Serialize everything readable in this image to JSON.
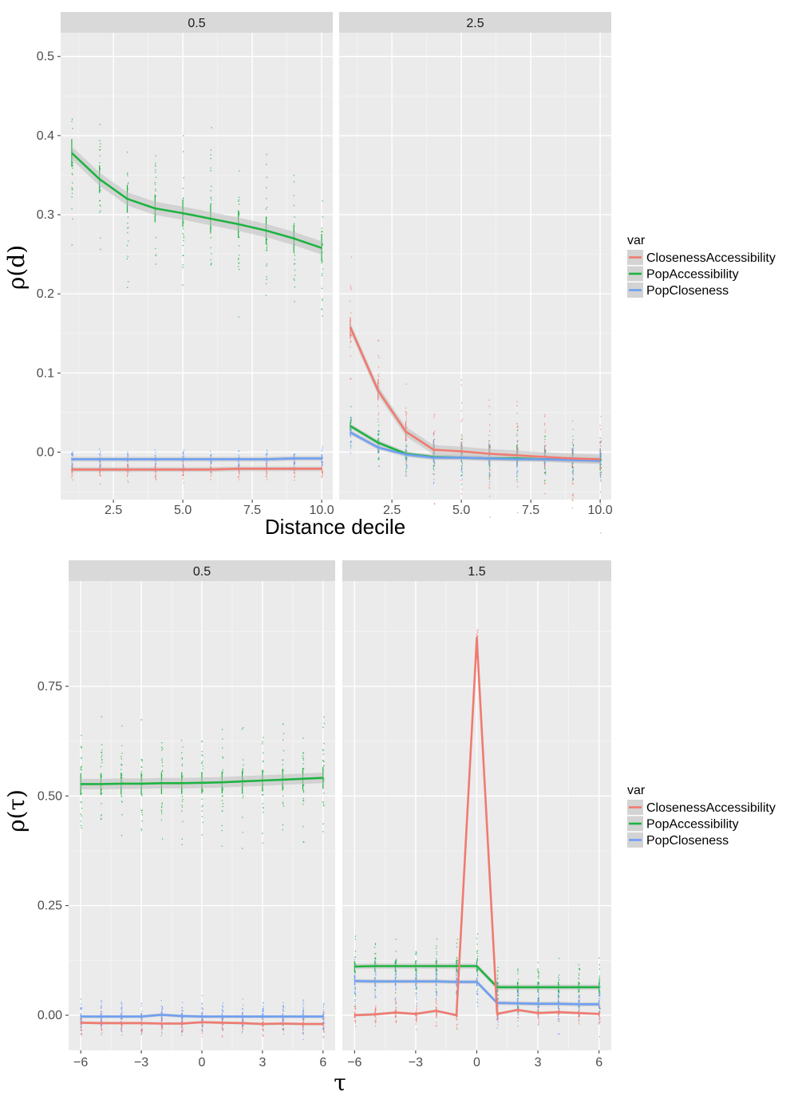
{
  "colors": {
    "ClosenessAccessibility": "#f07a70",
    "PopAccessibility": "#1eb341",
    "PopCloseness": "#6e9ff2",
    "panel_bg": "#ebebeb",
    "strip_bg": "#d9d9d9",
    "ribbon": "#bdbdbd"
  },
  "chart_data": [
    {
      "type": "line",
      "title": "",
      "xlabel": "Distance decile",
      "ylabel": "ρ(d)",
      "xlim": [
        0.6,
        10.4
      ],
      "ylim": [
        -0.06,
        0.53
      ],
      "x_ticks": [
        2.5,
        5.0,
        7.5,
        10.0
      ],
      "x_tick_labels": [
        "2.5",
        "5.0",
        "7.5",
        "10.0"
      ],
      "y_ticks": [
        0.0,
        0.1,
        0.2,
        0.3,
        0.4,
        0.5
      ],
      "y_tick_labels": [
        "0.0",
        "0.1",
        "0.2",
        "0.3",
        "0.4",
        "0.5"
      ],
      "legend_title": "var",
      "legend_items": [
        "ClosenessAccessibility",
        "PopAccessibility",
        "PopCloseness"
      ],
      "panels": [
        {
          "label": "0.5",
          "x": [
            1,
            2,
            3,
            4,
            5,
            6,
            7,
            8,
            9,
            10
          ],
          "series": [
            {
              "name": "ClosenessAccessibility",
              "values": [
                -0.022,
                -0.022,
                -0.022,
                -0.022,
                -0.022,
                -0.022,
                -0.021,
                -0.021,
                -0.021,
                -0.021
              ],
              "spread": 0.01
            },
            {
              "name": "PopAccessibility",
              "values": [
                0.378,
                0.345,
                0.32,
                0.308,
                0.302,
                0.295,
                0.288,
                0.28,
                0.27,
                0.258
              ],
              "spread": 0.07
            },
            {
              "name": "PopCloseness",
              "values": [
                -0.009,
                -0.009,
                -0.009,
                -0.009,
                -0.009,
                -0.009,
                -0.009,
                -0.009,
                -0.008,
                -0.008
              ],
              "spread": 0.01
            }
          ]
        },
        {
          "label": "2.5",
          "x": [
            1,
            2,
            3,
            4,
            5,
            6,
            7,
            8,
            9,
            10
          ],
          "series": [
            {
              "name": "ClosenessAccessibility",
              "values": [
                0.158,
                0.078,
                0.026,
                0.003,
                0.001,
                -0.002,
                -0.004,
                -0.006,
                -0.008,
                -0.009
              ],
              "spread": 0.05
            },
            {
              "name": "PopAccessibility",
              "values": [
                0.033,
                0.012,
                -0.002,
                -0.006,
                -0.007,
                -0.008,
                -0.008,
                -0.009,
                -0.009,
                -0.01
              ],
              "spread": 0.02
            },
            {
              "name": "PopCloseness",
              "values": [
                0.025,
                0.006,
                -0.003,
                -0.007,
                -0.007,
                -0.008,
                -0.009,
                -0.009,
                -0.01,
                -0.011
              ],
              "spread": 0.02
            }
          ]
        }
      ]
    },
    {
      "type": "line",
      "title": "",
      "xlabel": "τ",
      "ylabel": "ρ(τ)",
      "xlim": [
        -6.6,
        6.6
      ],
      "ylim": [
        -0.08,
        0.99
      ],
      "x_ticks": [
        -6,
        -3,
        0,
        3,
        6
      ],
      "x_tick_labels": [
        "−6",
        "−3",
        "0",
        "3",
        "6"
      ],
      "y_ticks": [
        0.0,
        0.25,
        0.5,
        0.75
      ],
      "y_tick_labels": [
        "0.00",
        "0.25",
        "0.50",
        "0.75"
      ],
      "legend_title": "var",
      "legend_items": [
        "ClosenessAccessibility",
        "PopAccessibility",
        "PopCloseness"
      ],
      "panels": [
        {
          "label": "0.5",
          "x": [
            -6,
            -5,
            -4,
            -3,
            -2,
            -1,
            0,
            1,
            2,
            3,
            4,
            5,
            6
          ],
          "series": [
            {
              "name": "ClosenessAccessibility",
              "values": [
                -0.017,
                -0.018,
                -0.018,
                -0.018,
                -0.019,
                -0.019,
                -0.016,
                -0.017,
                -0.018,
                -0.02,
                -0.019,
                -0.02,
                -0.02
              ],
              "spread": 0.02
            },
            {
              "name": "PopAccessibility",
              "values": [
                0.527,
                0.527,
                0.528,
                0.528,
                0.529,
                0.529,
                0.53,
                0.531,
                0.533,
                0.535,
                0.537,
                0.539,
                0.541
              ],
              "spread": 0.1
            },
            {
              "name": "PopCloseness",
              "values": [
                -0.003,
                -0.003,
                -0.003,
                -0.003,
                0.001,
                -0.002,
                -0.003,
                -0.003,
                -0.003,
                -0.003,
                -0.003,
                -0.003,
                -0.003
              ],
              "spread": 0.03
            }
          ]
        },
        {
          "label": "1.5",
          "x": [
            -6,
            -5,
            -4,
            -3,
            -2,
            -1,
            0,
            1,
            2,
            3,
            4,
            5,
            6
          ],
          "series": [
            {
              "name": "ClosenessAccessibility",
              "values": [
                0.0,
                0.002,
                0.006,
                0.003,
                0.01,
                0.0,
                0.86,
                0.003,
                0.012,
                0.005,
                0.007,
                0.005,
                0.003
              ],
              "spread": 0.02
            },
            {
              "name": "PopAccessibility",
              "values": [
                0.111,
                0.112,
                0.112,
                0.112,
                0.112,
                0.112,
                0.112,
                0.064,
                0.064,
                0.064,
                0.064,
                0.064,
                0.064
              ],
              "spread": 0.05
            },
            {
              "name": "PopCloseness",
              "values": [
                0.078,
                0.077,
                0.077,
                0.077,
                0.077,
                0.076,
                0.076,
                0.028,
                0.027,
                0.026,
                0.026,
                0.025,
                0.025
              ],
              "spread": 0.04
            }
          ]
        }
      ]
    }
  ]
}
